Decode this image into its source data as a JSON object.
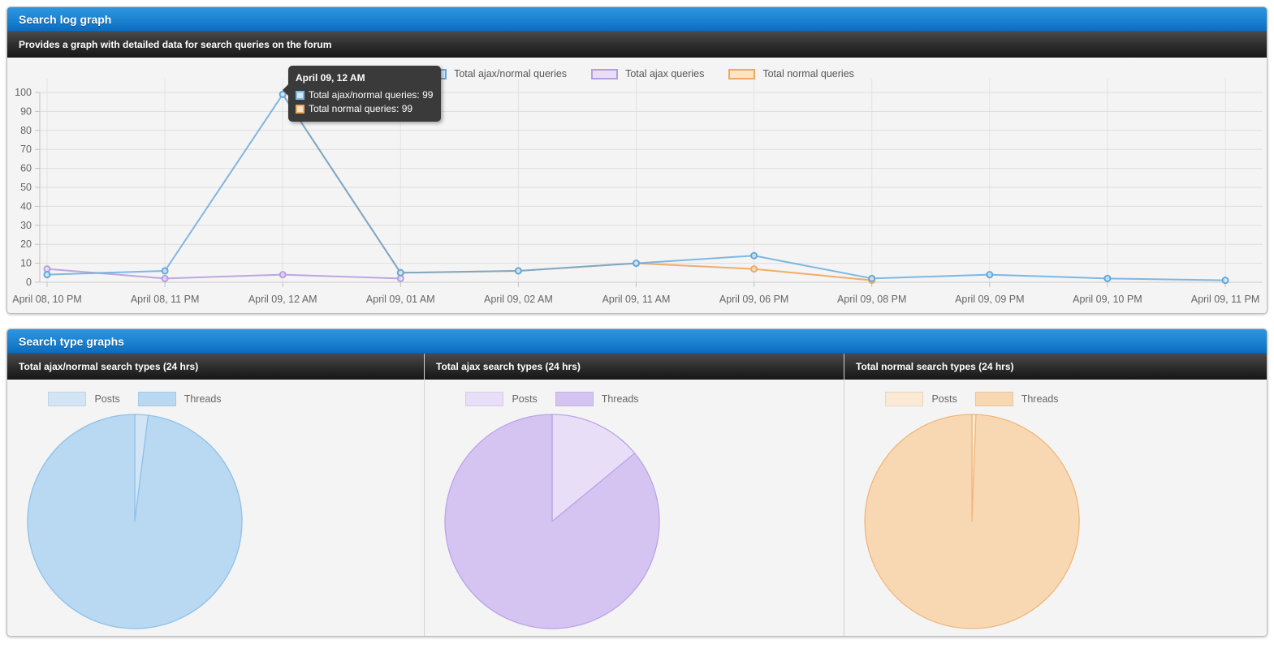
{
  "panel1": {
    "title": "Search log graph",
    "subtitle": "Provides a graph with detailed data for search queries on the forum",
    "tooltip": {
      "title": "April 09, 12 AM",
      "rows": [
        {
          "text": "Total ajax/normal queries: 99",
          "fill": "#cfe6f7",
          "border": "#7db8e3"
        },
        {
          "text": "Total normal queries: 99",
          "fill": "#fbe0c3",
          "border": "#eda75f"
        }
      ]
    }
  },
  "panel2": {
    "title": "Search type graphs"
  },
  "chart_data": [
    {
      "type": "line",
      "title": "Search log graph",
      "categories": [
        "April 08, 10 PM",
        "April 08, 11 PM",
        "April 09, 12 AM",
        "April 09, 01 AM",
        "April 09, 02 AM",
        "April 09, 11 AM",
        "April 09, 06 PM",
        "April 09, 08 PM",
        "April 09, 09 PM",
        "April 09, 10 PM",
        "April 09, 11 PM"
      ],
      "series": [
        {
          "name": "Total ajax/normal queries",
          "color": "#62a8dc",
          "fill": "#d6e9f8",
          "values": [
            4,
            6,
            99,
            5,
            6,
            10,
            14,
            2,
            4,
            2,
            1
          ]
        },
        {
          "name": "Total ajax queries",
          "color": "#b79de0",
          "fill": "#e9def8",
          "values": [
            7,
            2,
            4,
            2,
            null,
            null,
            null,
            null,
            null,
            null,
            null
          ]
        },
        {
          "name": "Total normal queries",
          "color": "#f0a860",
          "fill": "#fbe3c6",
          "values": [
            null,
            null,
            99,
            5,
            6,
            10,
            7,
            1,
            null,
            null,
            null
          ]
        }
      ],
      "ylim": [
        0,
        100
      ],
      "yticks": [
        0,
        10,
        20,
        30,
        40,
        50,
        60,
        70,
        80,
        90,
        100
      ],
      "grid": true,
      "legend_position": "top-center"
    },
    {
      "type": "pie",
      "title": "Total ajax/normal search types (24 hrs)",
      "labels": [
        "Posts",
        "Threads"
      ],
      "values": [
        2,
        98
      ],
      "colors": [
        "#d3e5f4",
        "#b9d9f2"
      ],
      "stroke": "#8fc0e9",
      "legend_position": "top"
    },
    {
      "type": "pie",
      "title": "Total ajax search types (24 hrs)",
      "labels": [
        "Posts",
        "Threads"
      ],
      "values": [
        14,
        86
      ],
      "colors": [
        "#e8def8",
        "#d5c4f2"
      ],
      "stroke": "#bba4e6",
      "legend_position": "top"
    },
    {
      "type": "pie",
      "title": "Total normal search types (24 hrs)",
      "labels": [
        "Posts",
        "Threads"
      ],
      "values": [
        0.6,
        99.4
      ],
      "colors": [
        "#fae9d5",
        "#f8d8b3"
      ],
      "stroke": "#f0b77c",
      "legend_position": "top"
    }
  ]
}
